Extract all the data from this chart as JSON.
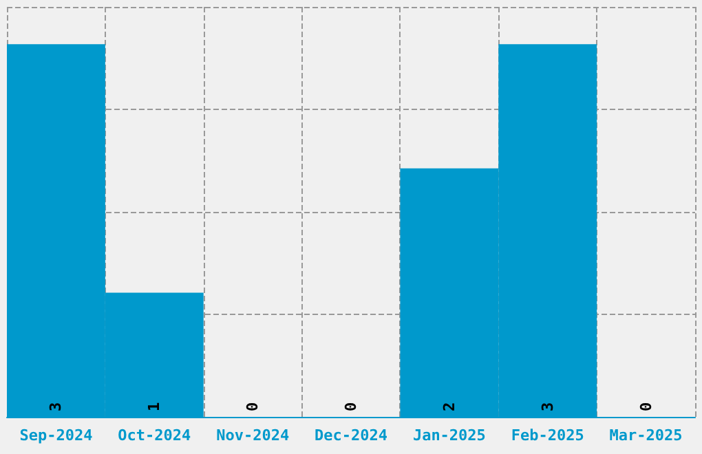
{
  "chart_data": {
    "type": "bar",
    "categories": [
      "Sep-2024",
      "Oct-2024",
      "Nov-2024",
      "Dec-2024",
      "Jan-2025",
      "Feb-2025",
      "Mar-2025"
    ],
    "values": [
      3,
      1,
      0,
      0,
      2,
      3,
      0
    ],
    "color": "#0099cc",
    "ylim": [
      0,
      3.3
    ],
    "yticks": [
      {
        "value": 0,
        "label": null
      },
      {
        "value": 0.825,
        "label": null
      },
      {
        "value": 1.65,
        "label": null
      },
      {
        "value": 2.475,
        "label": null
      },
      {
        "value": 3.3,
        "label": null
      }
    ],
    "grid": true,
    "data_labels": true,
    "tick_labels": "x"
  }
}
